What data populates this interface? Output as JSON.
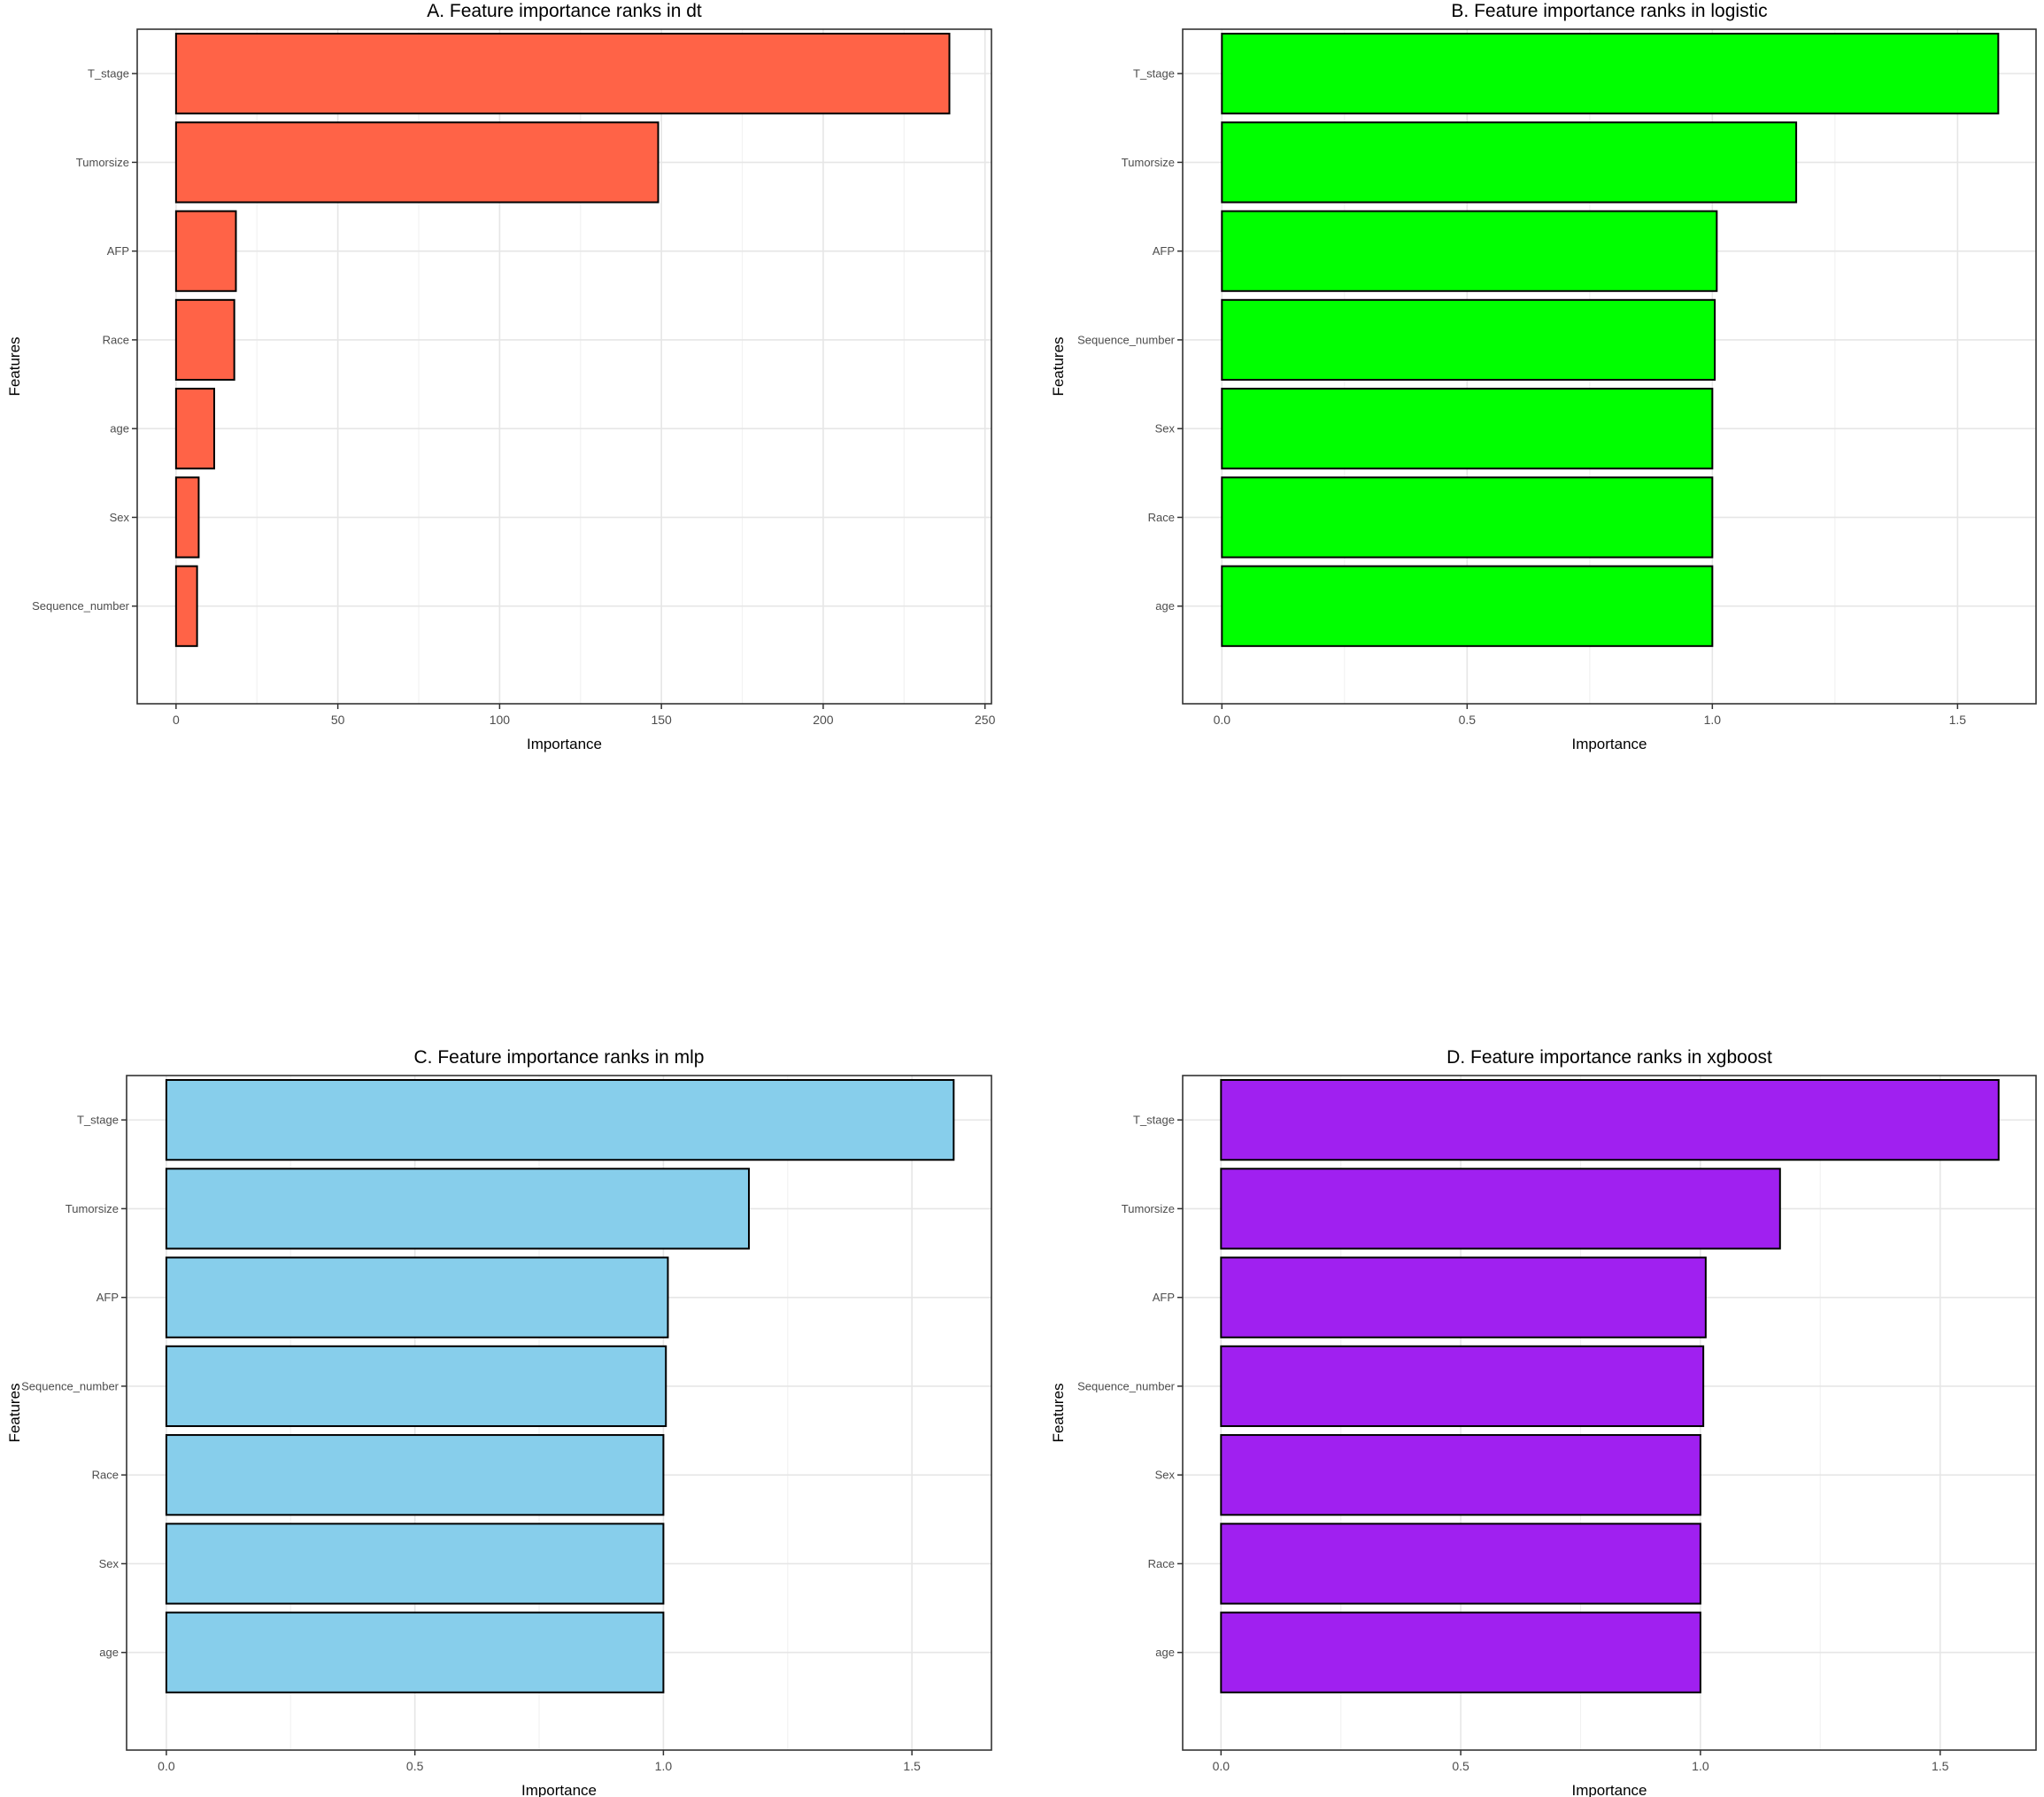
{
  "chart_data": [
    {
      "type": "bar",
      "orientation": "horizontal",
      "title": "A. Feature importance ranks in dt",
      "xlabel": "Importance",
      "ylabel": "Features",
      "categories": [
        "T_stage",
        "Tumorsize",
        "AFP",
        "Race",
        "age",
        "Sex",
        "Sequence_number"
      ],
      "values": [
        239,
        149,
        18.5,
        18,
        11.8,
        7,
        6.5
      ],
      "xlim": [
        -12,
        252
      ],
      "xticks": [
        0,
        50,
        100,
        150,
        200,
        250
      ],
      "xtick_labels": [
        "0",
        "50",
        "100",
        "150",
        "200",
        "250"
      ],
      "fill_color": "#FF6347",
      "grid": true
    },
    {
      "type": "bar",
      "orientation": "horizontal",
      "title": "B. Feature importance ranks in logistic",
      "xlabel": "Importance",
      "ylabel": "Features",
      "categories": [
        "T_stage",
        "Tumorsize",
        "AFP",
        "Sequence_number",
        "Sex",
        "Race",
        "age"
      ],
      "values": [
        1.583,
        1.171,
        1.009,
        1.005,
        1.0,
        1.0,
        1.0
      ],
      "xlim": [
        -0.08,
        1.66
      ],
      "xticks": [
        0,
        0.5,
        1,
        1.5
      ],
      "xtick_labels": [
        "0.0",
        "0.5",
        "1.0",
        "1.5"
      ],
      "fill_color": "#00FF00",
      "grid": true
    },
    {
      "type": "bar",
      "orientation": "horizontal",
      "title": "C. Feature importance ranks in mlp",
      "xlabel": "Importance",
      "ylabel": "Features",
      "categories": [
        "T_stage",
        "Tumorsize",
        "AFP",
        "Sequence_number",
        "Race",
        "Sex",
        "age"
      ],
      "values": [
        1.584,
        1.172,
        1.009,
        1.005,
        1.0,
        1.0,
        1.0
      ],
      "xlim": [
        -0.08,
        1.66
      ],
      "xticks": [
        0,
        0.5,
        1,
        1.5
      ],
      "xtick_labels": [
        "0.0",
        "0.5",
        "1.0",
        "1.5"
      ],
      "fill_color": "#87CEEB",
      "grid": true
    },
    {
      "type": "bar",
      "orientation": "horizontal",
      "title": "D. Feature importance ranks in xgboost",
      "xlabel": "Importance",
      "ylabel": "Features",
      "categories": [
        "T_stage",
        "Tumorsize",
        "AFP",
        "Sequence_number",
        "Sex",
        "Race",
        "age"
      ],
      "values": [
        1.622,
        1.166,
        1.011,
        1.006,
        1.0,
        1.0,
        1.0
      ],
      "xlim": [
        -0.08,
        1.7
      ],
      "xticks": [
        0,
        0.5,
        1,
        1.5
      ],
      "xtick_labels": [
        "0.0",
        "0.5",
        "1.0",
        "1.5"
      ],
      "fill_color": "#A020F0",
      "grid": true
    }
  ]
}
